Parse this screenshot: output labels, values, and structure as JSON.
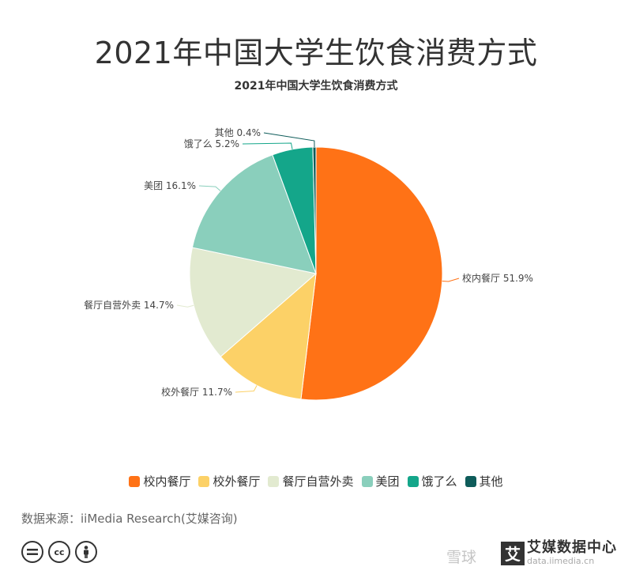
{
  "title": "2021年中国大学生饮食消费方式",
  "subtitle": "2021年中国大学生饮食消费方式",
  "source": "数据来源：iiMedia Research(艾媒咨询)",
  "watermark": "雪球",
  "logo": {
    "badge": "艾",
    "text": "艾媒数据中心",
    "domain": "data.iimedia.cn"
  },
  "license_icons": [
    "equals-icon",
    "cc-icon",
    "person-icon"
  ],
  "chart_data": {
    "type": "pie",
    "unit": "%",
    "legend_position": "bottom",
    "slices": [
      {
        "label": "校内餐厅",
        "value": 51.9,
        "color": "#FF7216",
        "text": "校内餐厅 51.9%"
      },
      {
        "label": "校外餐厅",
        "value": 11.7,
        "color": "#FCD167",
        "text": "校外餐厅 11.7%"
      },
      {
        "label": "餐厅自营外卖",
        "value": 14.7,
        "color": "#E2EAD0",
        "text": "餐厅自营外卖 14.7%"
      },
      {
        "label": "美团",
        "value": 16.1,
        "color": "#8ACFBC",
        "text": "美团 16.1%"
      },
      {
        "label": "饿了么",
        "value": 5.2,
        "color": "#14A68A",
        "text": "饿了么 5.2%"
      },
      {
        "label": "其他",
        "value": 0.4,
        "color": "#0E5C5A",
        "text": "其他 0.4%"
      }
    ]
  }
}
